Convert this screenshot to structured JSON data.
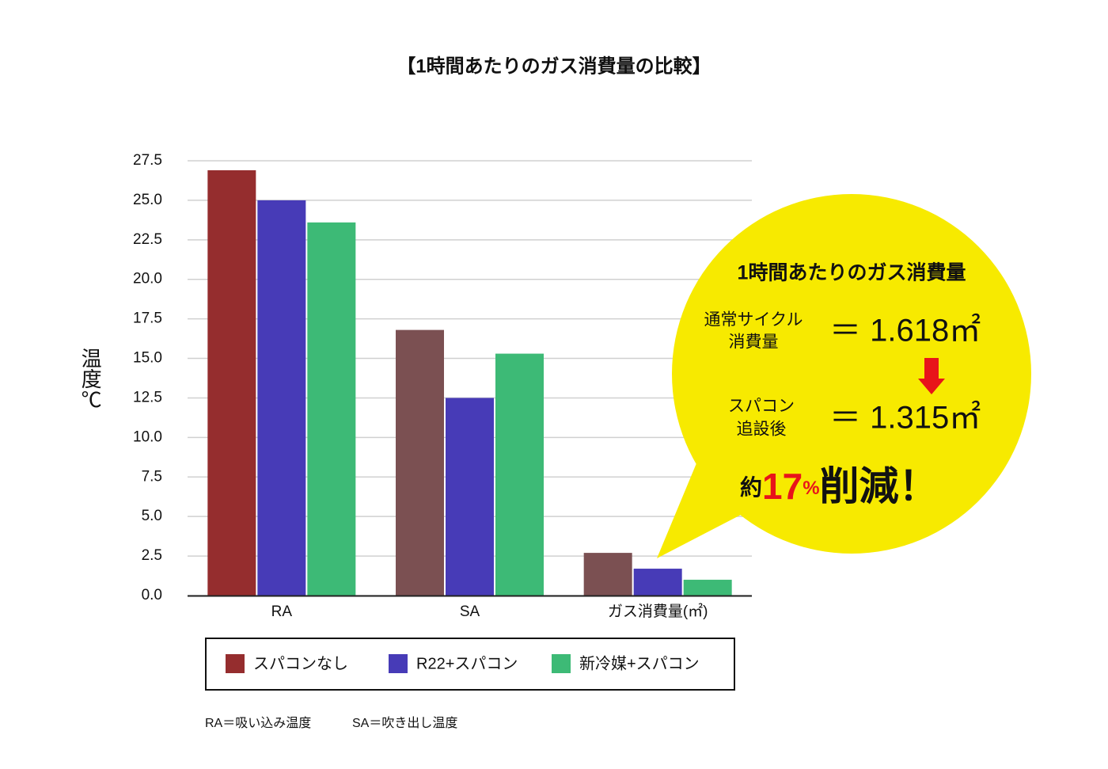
{
  "chart_data": {
    "type": "bar",
    "title": "【1時間あたりのガス消費量の比較】",
    "y_label": "温度℃",
    "categories": [
      "RA",
      "SA",
      "ガス消費量(㎡)"
    ],
    "series": [
      {
        "name": "スパコンなし",
        "color": "#952d2e",
        "colors": [
          "#952d2e",
          "#7b5052",
          "#7b5052"
        ],
        "values": [
          26.9,
          16.8,
          2.7
        ]
      },
      {
        "name": "R22+スパコン",
        "color": "#473bb7",
        "values": [
          25.0,
          12.5,
          1.7
        ]
      },
      {
        "name": "新冷媒+スパコン",
        "color": "#3dba76",
        "values": [
          23.6,
          15.3,
          1.0
        ]
      }
    ],
    "ylim": [
      0,
      27.5
    ],
    "yticks": [
      {
        "value": 0,
        "label": "0.0"
      },
      2.5,
      {
        "value": 5,
        "label": "5.0"
      },
      7.5,
      {
        "value": 10,
        "label": "10.0"
      },
      12.5,
      {
        "value": 15,
        "label": "15.0"
      },
      17.5,
      {
        "value": 20,
        "label": "20.0"
      },
      22.5,
      {
        "value": 25,
        "label": "25.0"
      },
      27.5
    ],
    "grid": true,
    "callout": {
      "title": "1時間あたりのガス消費量",
      "rows": [
        {
          "label": [
            "通常サイクル",
            "消費量"
          ],
          "value": "＝ 1.618㎡"
        },
        {
          "label": [
            "スパコン",
            "追設後"
          ],
          "value": "＝ 1.315㎡"
        }
      ],
      "result": [
        "約",
        "17",
        "%",
        "削減！"
      ]
    },
    "footnotes": [
      "RA＝吸い込み温度",
      "SA＝吹き出し温度"
    ]
  }
}
